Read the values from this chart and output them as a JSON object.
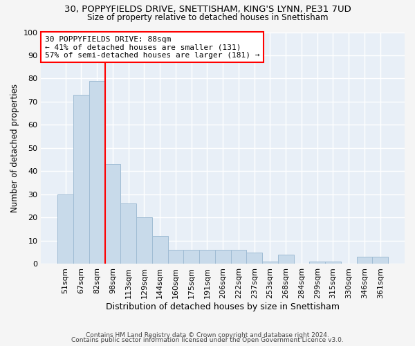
{
  "title": "30, POPPYFIELDS DRIVE, SNETTISHAM, KING'S LYNN, PE31 7UD",
  "subtitle": "Size of property relative to detached houses in Snettisham",
  "xlabel": "Distribution of detached houses by size in Snettisham",
  "ylabel": "Number of detached properties",
  "bar_labels": [
    "51sqm",
    "67sqm",
    "82sqm",
    "98sqm",
    "113sqm",
    "129sqm",
    "144sqm",
    "160sqm",
    "175sqm",
    "191sqm",
    "206sqm",
    "222sqm",
    "237sqm",
    "253sqm",
    "268sqm",
    "284sqm",
    "299sqm",
    "315sqm",
    "330sqm",
    "346sqm",
    "361sqm"
  ],
  "bar_values": [
    30,
    73,
    79,
    43,
    26,
    20,
    12,
    6,
    6,
    6,
    6,
    6,
    5,
    1,
    4,
    0,
    1,
    1,
    0,
    3,
    3
  ],
  "bar_color": "#c8daea",
  "bar_edge_color": "#a0bcd4",
  "annotation_box_text": "30 POPPYFIELDS DRIVE: 88sqm\n← 41% of detached houses are smaller (131)\n57% of semi-detached houses are larger (181) →",
  "red_line_x": 2.5,
  "ylim": [
    0,
    100
  ],
  "yticks": [
    0,
    10,
    20,
    30,
    40,
    50,
    60,
    70,
    80,
    90,
    100
  ],
  "background_color": "#e8eff7",
  "grid_color": "#ffffff",
  "fig_background": "#f5f5f5",
  "footer_line1": "Contains HM Land Registry data © Crown copyright and database right 2024.",
  "footer_line2": "Contains public sector information licensed under the Open Government Licence v3.0."
}
